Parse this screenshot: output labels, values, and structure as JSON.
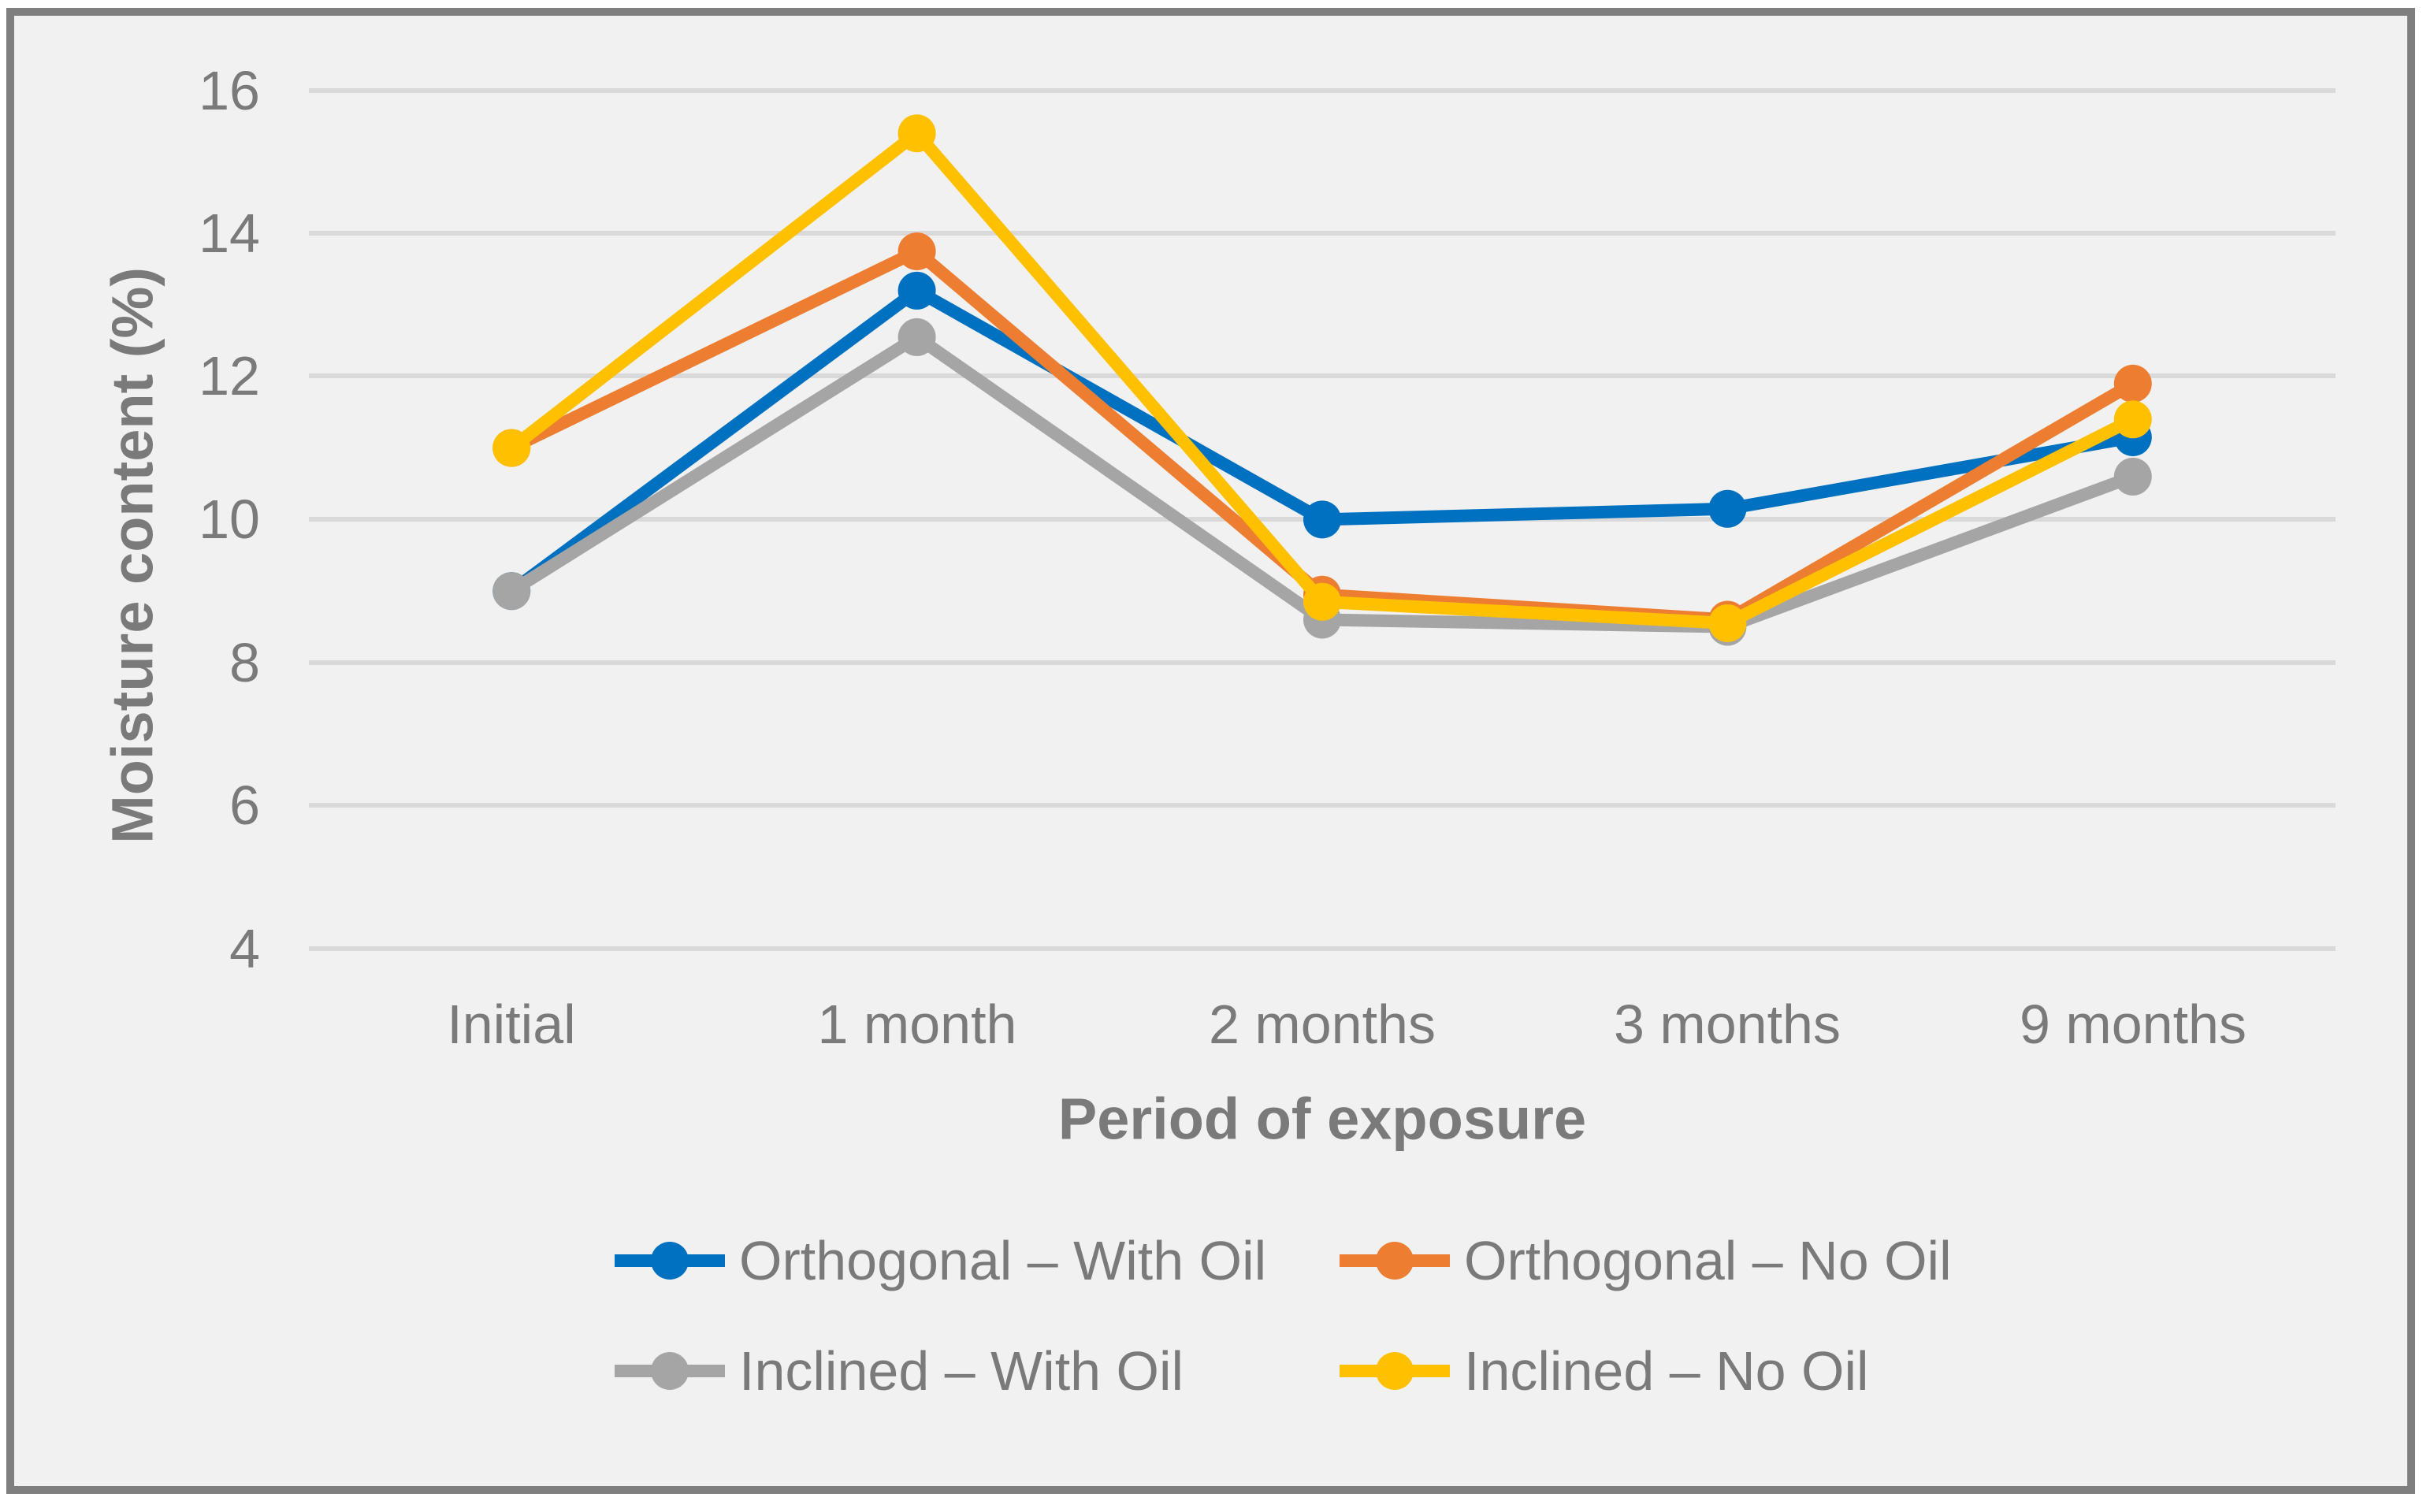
{
  "figure": {
    "description": "Line chart of moisture content versus period of exposure for orthogonal and inclined specimens with and without oil treatment"
  },
  "palette": {
    "page_background": "#FFFFFF",
    "chart_background": "#F1F1F1",
    "frame_border": "#7F7F7F",
    "gridline": "#D9D9D9",
    "axis_text": "#7A7A7A"
  },
  "chart_data": {
    "type": "line",
    "title": "",
    "xlabel": "Period of exposure",
    "ylabel": "Moisture content (%)",
    "categories": [
      "Initial",
      "1 month",
      "2 months",
      "3 months",
      "9 months"
    ],
    "series": [
      {
        "name": "Orthogonal – With Oil",
        "color": "#0070C0",
        "values": [
          9.0,
          13.2,
          10.0,
          10.15,
          11.15
        ]
      },
      {
        "name": "Orthogonal – No Oil",
        "color": "#ED7D31",
        "values": [
          11.0,
          13.75,
          8.95,
          8.6,
          11.9
        ]
      },
      {
        "name": "Inclined – With Oil",
        "color": "#A5A5A5",
        "values": [
          9.0,
          12.55,
          8.6,
          8.5,
          10.6
        ]
      },
      {
        "name": "Inclined – No Oil",
        "color": "#FFC000",
        "values": [
          11.0,
          15.4,
          8.85,
          8.55,
          11.4
        ]
      }
    ],
    "ylim": [
      3,
      16
    ],
    "yticks_top_to_bottom": [
      16,
      14,
      12,
      10,
      8,
      6,
      4
    ],
    "grid": "horizontal-only",
    "legend_position": "bottom-two-rows",
    "marker": "circle"
  }
}
